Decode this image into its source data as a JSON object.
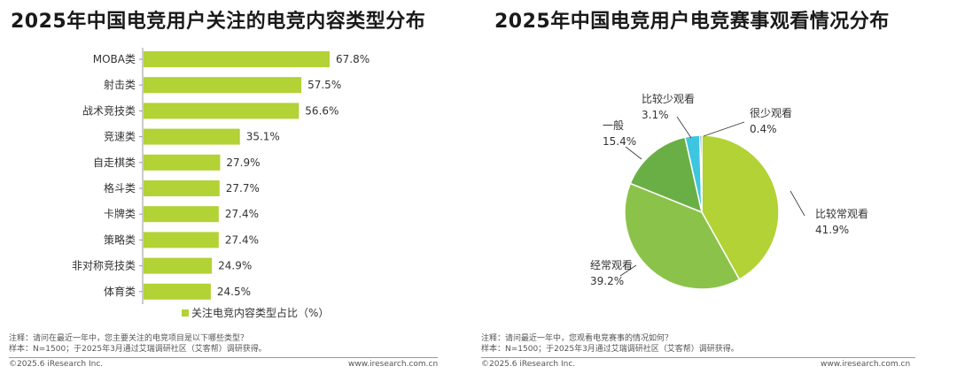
{
  "left": {
    "title": "2025年中国电竞用户关注的电竞内容类型分布",
    "note_line1": "注释：请问在最近一年中，您主要关注的电竞项目是以下哪些类型？",
    "note_line2": "样本：N=1500；于2025年3月通过艾瑞调研社区（艾客帮）调研获得。",
    "copyright": "©2025.6 iResearch Inc.",
    "website": "www.iresearch.com.cn"
  },
  "right": {
    "title": "2025年中国电竞用户电竞赛事观看情况分布",
    "note_line1": "注释：请问最近一年中，您观看电竞赛事的情况如何？",
    "note_line2": "样本：N=1500；于2025年3月通过艾瑞调研社区（艾客帮）调研获得。",
    "copyright": "©2025.6 iResearch Inc.",
    "website": "www.iresearch.com.cn"
  },
  "chart_data": [
    {
      "type": "bar",
      "orientation": "horizontal",
      "categories": [
        "MOBA类",
        "射击类",
        "战术竞技类",
        "竞速类",
        "自走棋类",
        "格斗类",
        "卡牌类",
        "策略类",
        "非对称竞技类",
        "体育类"
      ],
      "series": [
        {
          "name": "关注电竞内容类型占比（%）",
          "values": [
            67.8,
            57.5,
            56.6,
            35.1,
            27.9,
            27.7,
            27.4,
            27.4,
            24.9,
            24.5
          ],
          "labels": [
            "67.8%",
            "57.5%",
            "56.6%",
            "35.1%",
            "27.9%",
            "27.7%",
            "27.4%",
            "27.4%",
            "24.9%",
            "24.5%"
          ]
        }
      ],
      "title": "2025年中国电竞用户关注的电竞内容类型分布",
      "legend_position": "bottom",
      "color": "#b2d235",
      "xlim": [
        0,
        80
      ]
    },
    {
      "type": "pie",
      "slices": [
        {
          "label": "比较常观看",
          "value": 41.9,
          "value_label": "41.9%",
          "color": "#b2d235"
        },
        {
          "label": "经常观看",
          "value": 39.2,
          "value_label": "39.2%",
          "color": "#8bc34a"
        },
        {
          "label": "一般",
          "value": 15.4,
          "value_label": "15.4%",
          "color": "#6aaf45"
        },
        {
          "label": "比较少观看",
          "value": 3.1,
          "value_label": "3.1%",
          "color": "#3ec6e0"
        },
        {
          "label": "很少观看",
          "value": 0.4,
          "value_label": "0.4%",
          "color": "#1f7fc0"
        }
      ],
      "title": "2025年中国电竞用户电竞赛事观看情况分布",
      "start": "12 o'clock",
      "direction": "clockwise"
    }
  ]
}
